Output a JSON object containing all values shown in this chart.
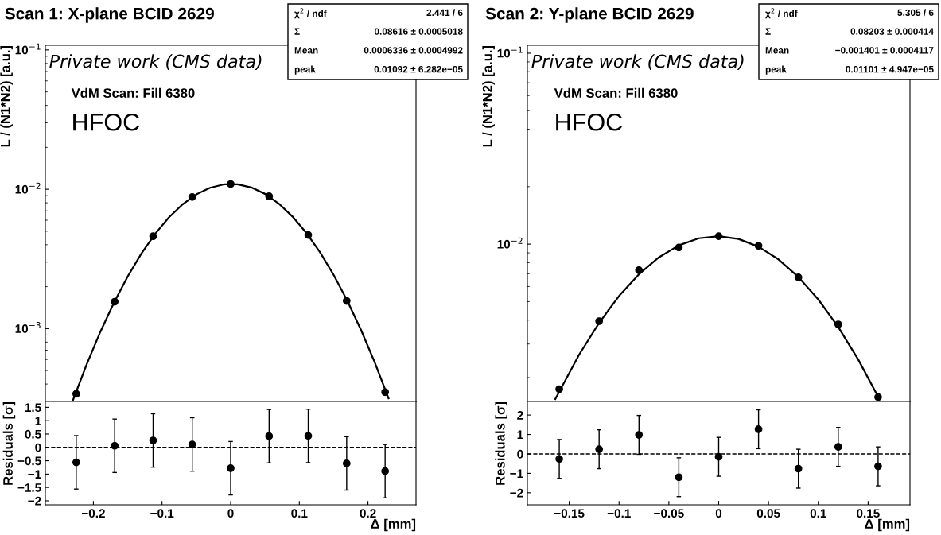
{
  "chart_data": [
    {
      "type": "scatter",
      "title": "Scan 1: X-plane BCID 2629",
      "ylabel": "L / (N1*N2) [a.u.]",
      "log": "y",
      "marker": "circle",
      "tick_labels": "y",
      "xlim": [
        -0.27,
        0.27
      ],
      "ylim": [
        0.0003,
        0.108
      ],
      "yticks": [
        {
          "value": 0.001,
          "label": "10$^{−3}$"
        },
        {
          "value": 0.01,
          "label": "10$^{−2}$"
        },
        {
          "value": 0.1,
          "label": "10$^{−1}$"
        }
      ],
      "annotations": [
        "Private work (CMS data)",
        "VdM Scan: Fill 6380",
        "HFOC",
        "χ$^{2}$ / ndf",
        "2.441 / 6",
        "Σ",
        "0.08616 ± 0.0005018",
        "Mean",
        "0.0006336 ± 0.0004992",
        "peak",
        "0.01092 ± 6.282e−05"
      ],
      "series": [
        {
          "color": "#000000",
          "x": [
            -0.225,
            -0.169,
            -0.113,
            -0.056,
            0,
            0.056,
            0.113,
            0.169,
            0.225
          ],
          "values": [
            0.00034,
            0.00156,
            0.0046,
            0.0088,
            0.0109,
            0.0089,
            0.0047,
            0.00158,
            0.00035
          ]
        },
        {
          "type": "line",
          "marker": "none",
          "color": "#000000",
          "line_style": "solid",
          "x": [
            -0.23,
            -0.21,
            -0.19,
            -0.17,
            -0.15,
            -0.13,
            -0.11,
            -0.09,
            -0.07,
            -0.05,
            -0.03,
            -0.01,
            0.01,
            0.03,
            0.05,
            0.07,
            0.09,
            0.11,
            0.13,
            0.15,
            0.17,
            0.19,
            0.21,
            0.23
          ],
          "values": [
            0.000304,
            0.00055,
            0.000945,
            0.001536,
            0.002369,
            0.00346,
            0.00479,
            0.00628,
            0.0078,
            0.00919,
            0.01025,
            0.01084,
            0.01086,
            0.0103,
            0.00927,
            0.0079,
            0.00638,
            0.00488,
            0.00354,
            0.00243,
            0.001582,
            0.000975,
            0.00057,
            0.000316
          ]
        }
      ]
    },
    {
      "type": "scatter",
      "xlabel": "Δ [mm]",
      "ylabel": "Residuals [σ]",
      "marker": "circle",
      "xlim": [
        -0.27,
        0.27
      ],
      "xticks": [
        -0.2,
        -0.1,
        0,
        0.1,
        0.2
      ],
      "ylim": [
        -2.15,
        1.72
      ],
      "yticks": [
        -2,
        -1.5,
        -1,
        -0.5,
        0,
        0.5,
        1,
        1.5
      ],
      "ref_lines": [
        {
          "axis": "y",
          "value": 0,
          "line_style": "dashed",
          "color": "#000000"
        }
      ],
      "series": [
        {
          "color": "#000000",
          "x": [
            -0.225,
            -0.169,
            -0.113,
            -0.056,
            0,
            0.056,
            0.113,
            0.169,
            0.225
          ],
          "values": [
            -0.56,
            0.06,
            0.26,
            0.11,
            -0.78,
            0.42,
            0.43,
            -0.6,
            -0.89
          ],
          "errors": [
            1,
            1,
            1,
            1,
            1,
            1,
            1,
            1,
            1
          ]
        }
      ]
    },
    {
      "type": "scatter",
      "title": "Scan 2: Y-plane BCID 2629",
      "ylabel": "L / (N1*N2) [a.u.]",
      "log": "y",
      "marker": "circle",
      "tick_labels": "y",
      "xlim": [
        -0.192,
        0.192
      ],
      "ylim": [
        0.0015,
        0.11
      ],
      "yticks": [
        {
          "value": 0.01,
          "label": "10$^{−2}$"
        },
        {
          "value": 0.1,
          "label": "10$^{−1}$"
        }
      ],
      "annotations": [
        "Private work (CMS data)",
        "VdM Scan: Fill 6380",
        "HFOC",
        "χ$^{2}$ / ndf",
        "5.305 / 6",
        "Σ",
        "0.08203 ± 0.000414",
        "Mean",
        "−0.001401 ± 0.0004117",
        "peak",
        "0.01101 ± 4.947e−05"
      ],
      "series": [
        {
          "color": "#000000",
          "x": [
            -0.16,
            -0.12,
            -0.08,
            -0.04,
            0,
            0.04,
            0.08,
            0.12,
            0.16
          ],
          "values": [
            0.00174,
            0.00395,
            0.0073,
            0.0096,
            0.011,
            0.0098,
            0.0067,
            0.0038,
            0.00158
          ]
        },
        {
          "type": "line",
          "marker": "none",
          "color": "#000000",
          "line_style": "solid",
          "x": [
            -0.164,
            -0.14,
            -0.12,
            -0.1,
            -0.08,
            -0.06,
            -0.04,
            -0.02,
            0,
            0.02,
            0.04,
            0.06,
            0.08,
            0.1,
            0.12,
            0.14,
            0.16
          ],
          "values": [
            0.001544,
            0.002641,
            0.003871,
            0.00535,
            0.00696,
            0.00853,
            0.00986,
            0.01073,
            0.01101,
            0.01064,
            0.00969,
            0.00832,
            0.00673,
            0.00513,
            0.00368,
            0.00249,
            0.001589
          ]
        }
      ]
    },
    {
      "type": "scatter",
      "xlabel": "Δ [mm]",
      "ylabel": "Residuals [σ]",
      "marker": "circle",
      "xlim": [
        -0.192,
        0.192
      ],
      "xticks": [
        -0.15,
        -0.1,
        -0.05,
        0,
        0.05,
        0.1,
        0.15
      ],
      "ylim": [
        -2.62,
        2.7
      ],
      "yticks": [
        -2,
        -1,
        0,
        1,
        2
      ],
      "ref_lines": [
        {
          "axis": "y",
          "value": 0,
          "line_style": "dashed",
          "color": "#000000"
        }
      ],
      "series": [
        {
          "color": "#000000",
          "x": [
            -0.16,
            -0.12,
            -0.08,
            -0.04,
            0,
            0.04,
            0.08,
            0.12,
            0.16
          ],
          "values": [
            -0.26,
            0.24,
            0.98,
            -1.2,
            -0.15,
            1.27,
            -0.76,
            0.36,
            -0.64
          ],
          "errors": [
            1,
            1,
            1,
            1,
            1,
            1,
            1,
            1,
            1
          ]
        }
      ]
    }
  ]
}
